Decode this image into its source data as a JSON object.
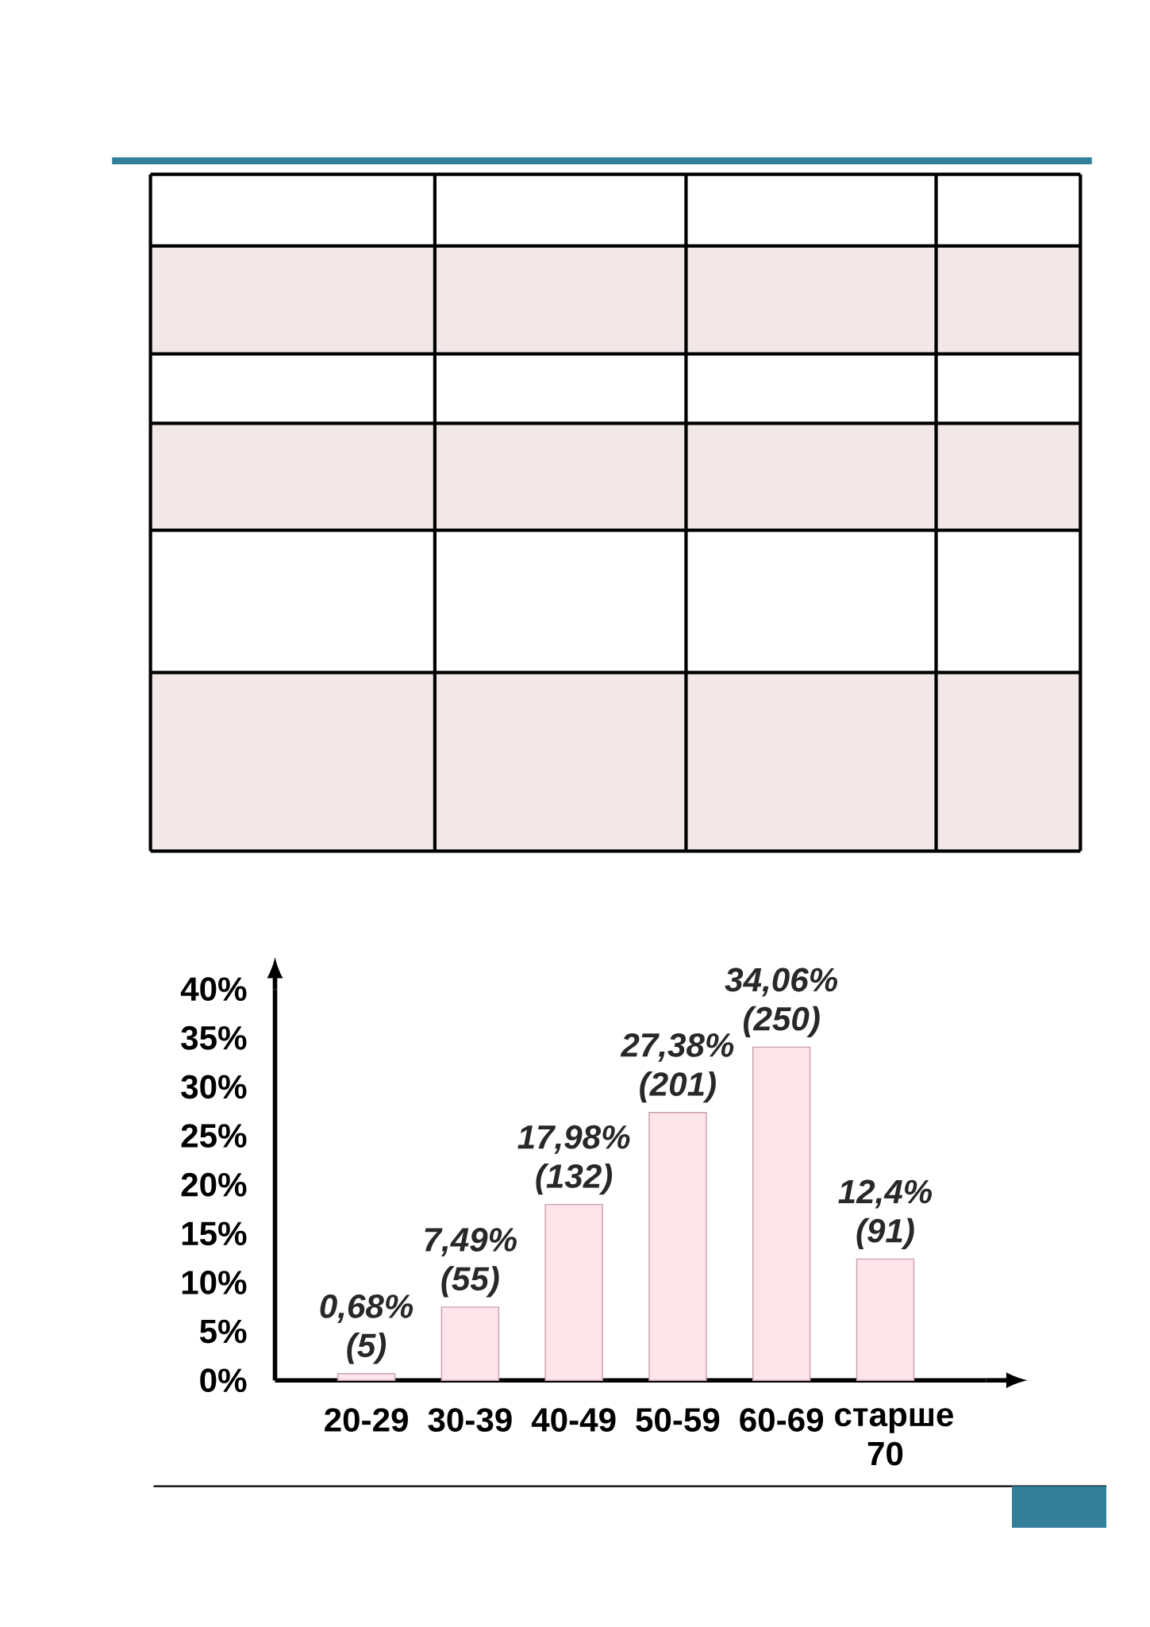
{
  "chart_data": {
    "type": "bar",
    "categories": [
      "20-29",
      "30-39",
      "40-49",
      "50-59",
      "60-69",
      "старше 70"
    ],
    "values": [
      0.68,
      7.49,
      17.98,
      27.38,
      34.06,
      12.4
    ],
    "value_labels": [
      "0,68% (5)",
      "7,49% (55)",
      "17,98% (132)",
      "27,38% (201)",
      "34,06% (250)",
      "12,4% (91)"
    ],
    "color": "#fde4ea",
    "ylim": [
      0,
      40
    ],
    "yticks": [
      {
        "value": 0,
        "label": "0%"
      },
      {
        "value": 5,
        "label": "5%"
      },
      {
        "value": 10,
        "label": "10%"
      },
      {
        "value": 15,
        "label": "15%"
      },
      {
        "value": 20,
        "label": "20%"
      },
      {
        "value": 25,
        "label": "25%"
      },
      {
        "value": 30,
        "label": "30%"
      },
      {
        "value": 35,
        "label": "35%"
      },
      {
        "value": 40,
        "label": "40%"
      }
    ]
  }
}
